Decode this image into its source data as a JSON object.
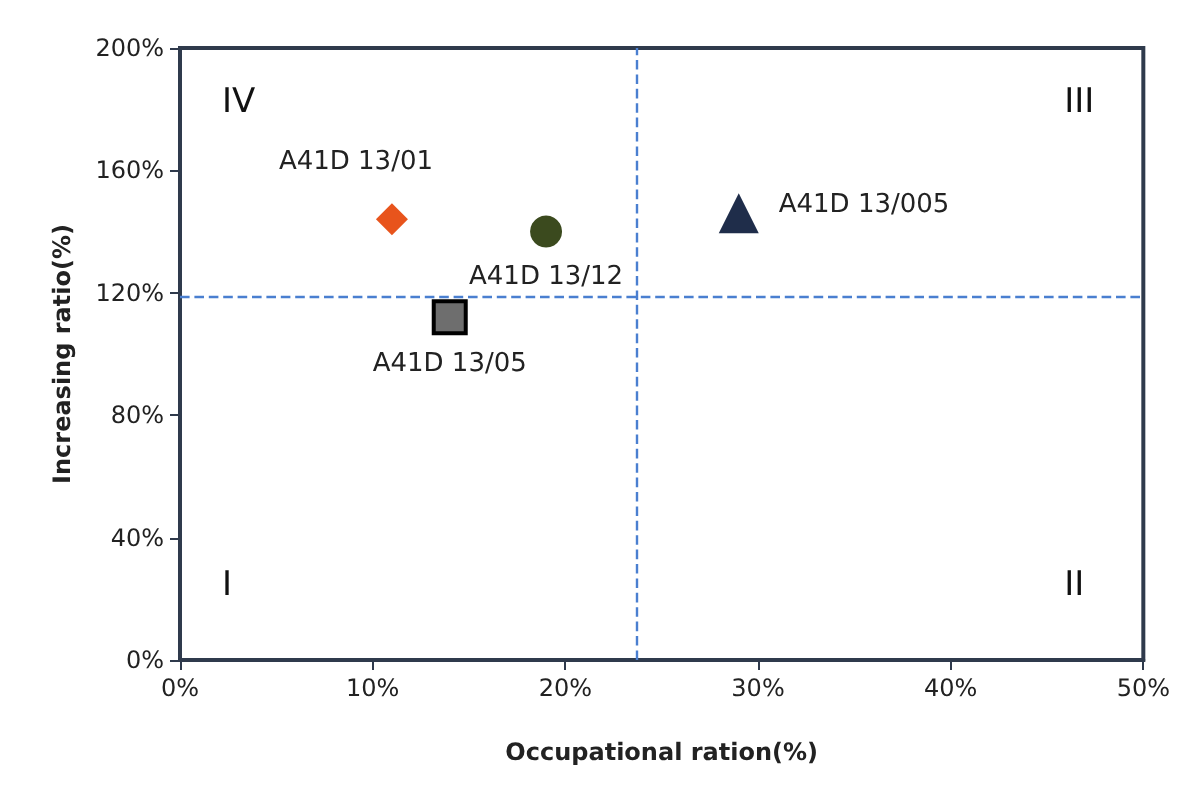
{
  "chart_data": {
    "type": "scatter",
    "xlabel": "Occupational ration(%)",
    "ylabel": "Increasing ratio(%)",
    "xlim": [
      0,
      50
    ],
    "ylim": [
      0,
      200
    ],
    "xticks": [
      {
        "value": 0,
        "label": "0%"
      },
      {
        "value": 10,
        "label": "10%"
      },
      {
        "value": 20,
        "label": "20%"
      },
      {
        "value": 30,
        "label": "30%"
      },
      {
        "value": 40,
        "label": "40%"
      },
      {
        "value": 50,
        "label": "50%"
      }
    ],
    "yticks": [
      {
        "value": 0,
        "label": "0%"
      },
      {
        "value": 40,
        "label": "40%"
      },
      {
        "value": 80,
        "label": "80%"
      },
      {
        "value": 120,
        "label": "120%"
      },
      {
        "value": 160,
        "label": "160%"
      },
      {
        "value": 200,
        "label": "200%"
      }
    ],
    "grid": false,
    "legend": false,
    "series": [
      {
        "name": "A41D 13/01",
        "color": "#e8541c",
        "marker": "diamond",
        "x": [
          11
        ],
        "values": [
          144
        ]
      },
      {
        "name": "A41D 13/12",
        "color": "#3b4a1e",
        "marker": "circle",
        "x": [
          19
        ],
        "values": [
          140
        ]
      },
      {
        "name": "A41D 13/05",
        "color": "#6e6e6e",
        "marker": "square",
        "x": [
          14
        ],
        "values": [
          112
        ]
      },
      {
        "name": "A41D 13/005",
        "color": "#1f2d4a",
        "marker": "triangle",
        "x": [
          29
        ],
        "values": [
          146
        ]
      }
    ],
    "ref_lines": [
      {
        "axis": "x",
        "value": 23.7,
        "color": "#4a7fd0",
        "line_style": "dashed"
      },
      {
        "axis": "y",
        "value": 119,
        "color": "#4a7fd0",
        "line_style": "dashed"
      }
    ],
    "annotations": [
      "IV",
      "III",
      "I",
      "II"
    ]
  }
}
